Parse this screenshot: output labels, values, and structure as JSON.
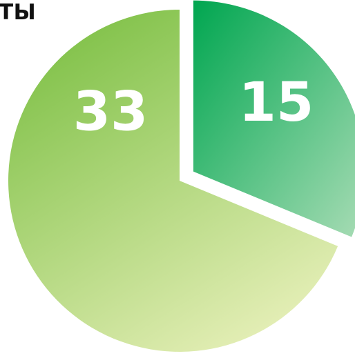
{
  "chart_data": {
    "type": "pie",
    "title_fragment": "ТЫ",
    "slices": [
      {
        "value": 15,
        "label": "15",
        "color_start": "#00a650",
        "color_end": "#a8dcb5",
        "exploded": true
      },
      {
        "value": 33,
        "label": "33",
        "color_start": "#7bbf43",
        "color_end": "#e6efb8",
        "exploded": false
      }
    ],
    "label_color": "#ffffff",
    "background": "#ffffff"
  }
}
